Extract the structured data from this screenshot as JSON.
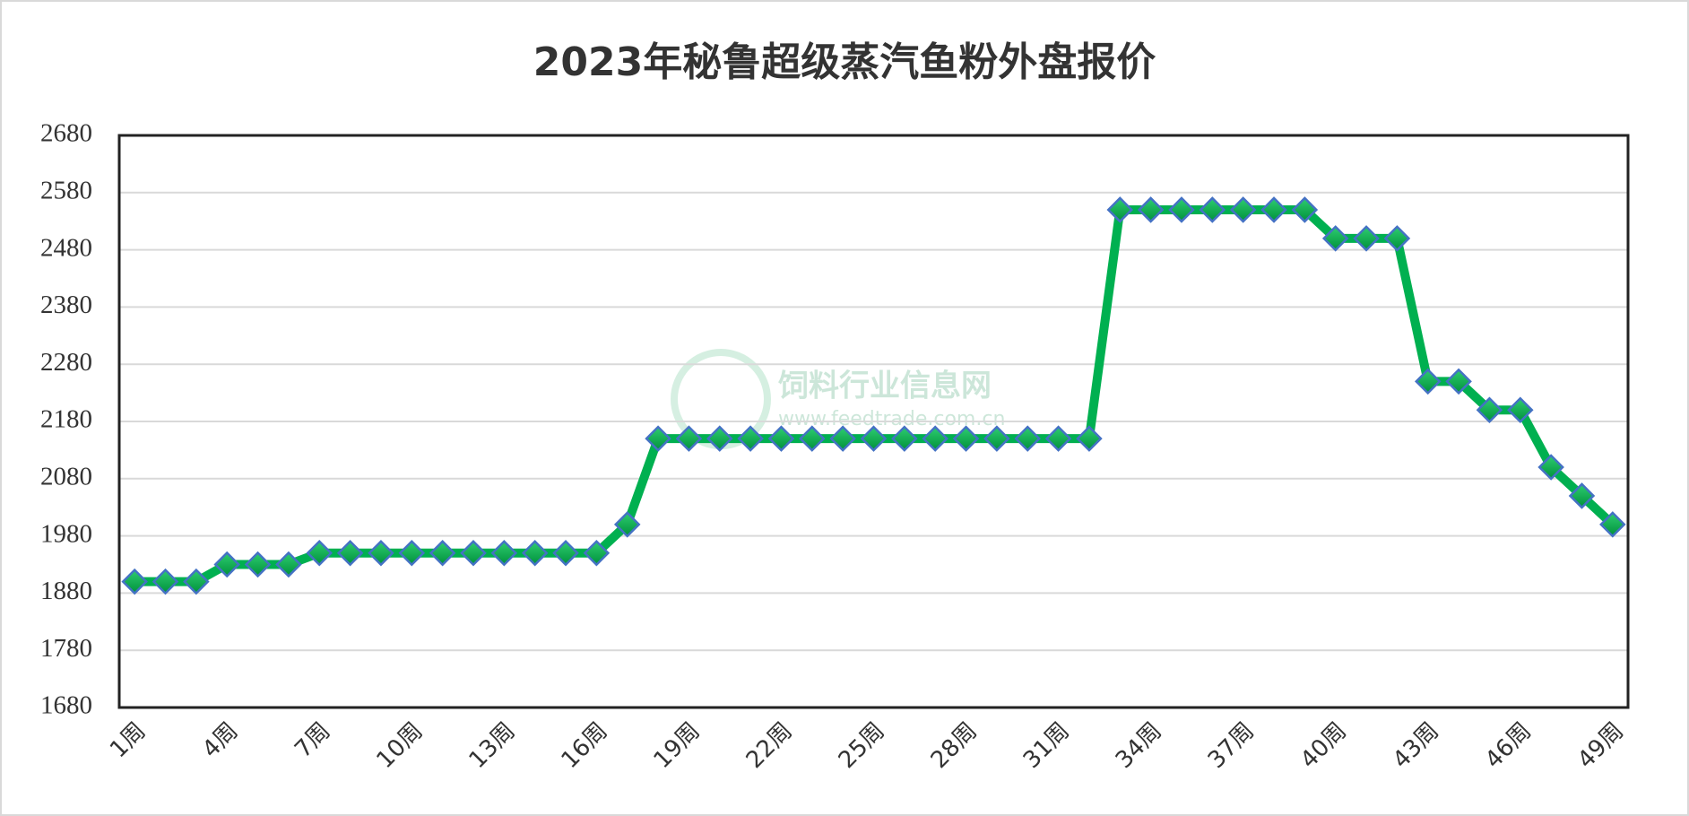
{
  "chart_data": {
    "type": "line",
    "title": "2023年秘鲁超级蒸汽鱼粉外盘报价",
    "categories": [
      "1周",
      null,
      null,
      "4周",
      null,
      null,
      "7周",
      null,
      null,
      "10周",
      null,
      null,
      "13周",
      null,
      null,
      "16周",
      null,
      null,
      "19周",
      null,
      null,
      "22周",
      null,
      null,
      "25周",
      null,
      null,
      "28周",
      null,
      null,
      "31周",
      null,
      null,
      "34周",
      null,
      null,
      "37周",
      null,
      null,
      "40周",
      null,
      null,
      "43周",
      null,
      null,
      "46周",
      null,
      null,
      "49周"
    ],
    "values": [
      1900,
      1900,
      1900,
      1930,
      1930,
      1930,
      1950,
      1950,
      1950,
      1950,
      1950,
      1950,
      1950,
      1950,
      1950,
      1950,
      2000,
      2150,
      2150,
      2150,
      2150,
      2150,
      2150,
      2150,
      2150,
      2150,
      2150,
      2150,
      2150,
      2150,
      2150,
      2150,
      2550,
      2550,
      2550,
      2550,
      2550,
      2550,
      2550,
      2500,
      2500,
      2500,
      2250,
      2250,
      2200,
      2200,
      2100,
      2050,
      2000
    ],
    "color": "#00b050",
    "marker_edge_color": "#4472c4",
    "ylim": [
      1680,
      2680
    ],
    "yticks": [
      1680,
      1780,
      1880,
      1980,
      2080,
      2180,
      2280,
      2380,
      2480,
      2580,
      2680
    ],
    "grid": true,
    "watermark": [
      "饲料行业信息网",
      "www.feedtrade.com.cn"
    ]
  }
}
